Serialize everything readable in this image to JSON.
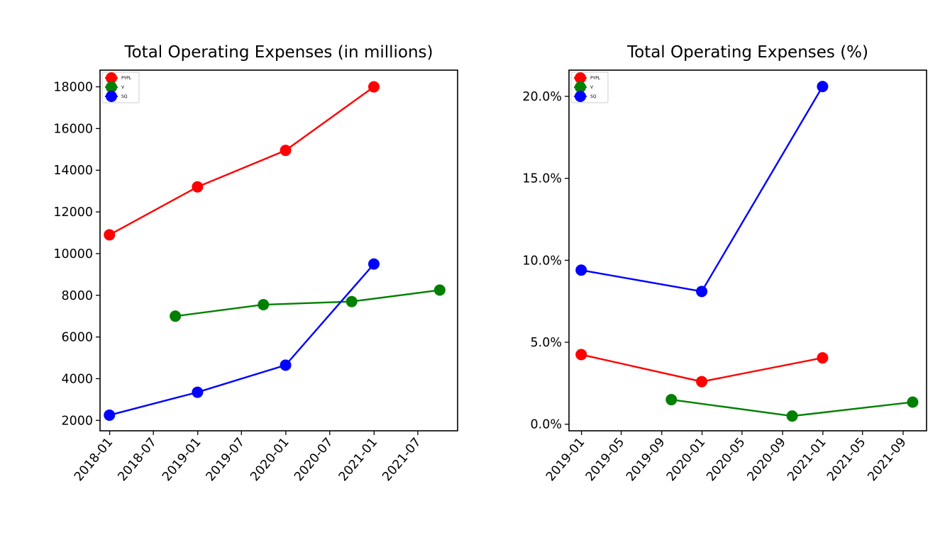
{
  "chart_data": [
    {
      "type": "line",
      "title": "Total Operating Expenses (in millions)",
      "xlabel": "",
      "ylabel": "",
      "x_is_date": true,
      "xlim": [
        "2017-11-22",
        "2021-12-13"
      ],
      "ylim": [
        1500,
        18800
      ],
      "x_ticks": [
        "2018-01",
        "2018-07",
        "2019-01",
        "2019-07",
        "2020-01",
        "2020-07",
        "2021-01",
        "2021-07"
      ],
      "y_ticks": [
        2000,
        4000,
        6000,
        8000,
        10000,
        12000,
        14000,
        16000,
        18000
      ],
      "y_tick_labels": [
        "2000",
        "4000",
        "6000",
        "8000",
        "10000",
        "12000",
        "14000",
        "16000",
        "18000"
      ],
      "grid": false,
      "legend": "top-left",
      "series": [
        {
          "name": "PYPL",
          "color": "#ff0000",
          "x": [
            "2017-12-31",
            "2018-12-31",
            "2019-12-31",
            "2020-12-31"
          ],
          "y": [
            10900,
            13200,
            14950,
            18000
          ]
        },
        {
          "name": "V",
          "color": "#008000",
          "x": [
            "2018-09-30",
            "2019-09-30",
            "2020-09-30",
            "2021-09-30"
          ],
          "y": [
            7000,
            7550,
            7700,
            8250
          ]
        },
        {
          "name": "SQ",
          "color": "#0000ff",
          "x": [
            "2017-12-31",
            "2018-12-31",
            "2019-12-31",
            "2020-12-31"
          ],
          "y": [
            2250,
            3350,
            4650,
            9500
          ]
        }
      ]
    },
    {
      "type": "line",
      "title": "Total Operating Expenses (%)",
      "xlabel": "",
      "ylabel": "",
      "x_is_date": true,
      "xlim": [
        "2018-11-24",
        "2021-11-11"
      ],
      "ylim": [
        -0.4,
        21.6
      ],
      "x_ticks": [
        "2019-01",
        "2019-05",
        "2019-09",
        "2020-01",
        "2020-05",
        "2020-09",
        "2021-01",
        "2021-05",
        "2021-09"
      ],
      "y_ticks": [
        0,
        5,
        10,
        15,
        20
      ],
      "y_tick_labels": [
        "0.0%",
        "5.0%",
        "10.0%",
        "15.0%",
        "20.0%"
      ],
      "grid": false,
      "legend": "top-left",
      "series": [
        {
          "name": "PYPL",
          "color": "#ff0000",
          "x": [
            "2018-12-31",
            "2019-12-31",
            "2020-12-31"
          ],
          "y": [
            4.25,
            2.6,
            4.05
          ]
        },
        {
          "name": "V",
          "color": "#008000",
          "x": [
            "2019-09-30",
            "2020-09-30",
            "2021-09-30"
          ],
          "y": [
            1.5,
            0.5,
            1.35
          ]
        },
        {
          "name": "SQ",
          "color": "#0000ff",
          "x": [
            "2018-12-31",
            "2019-12-31",
            "2020-12-31"
          ],
          "y": [
            9.4,
            8.1,
            20.6
          ]
        }
      ]
    }
  ]
}
